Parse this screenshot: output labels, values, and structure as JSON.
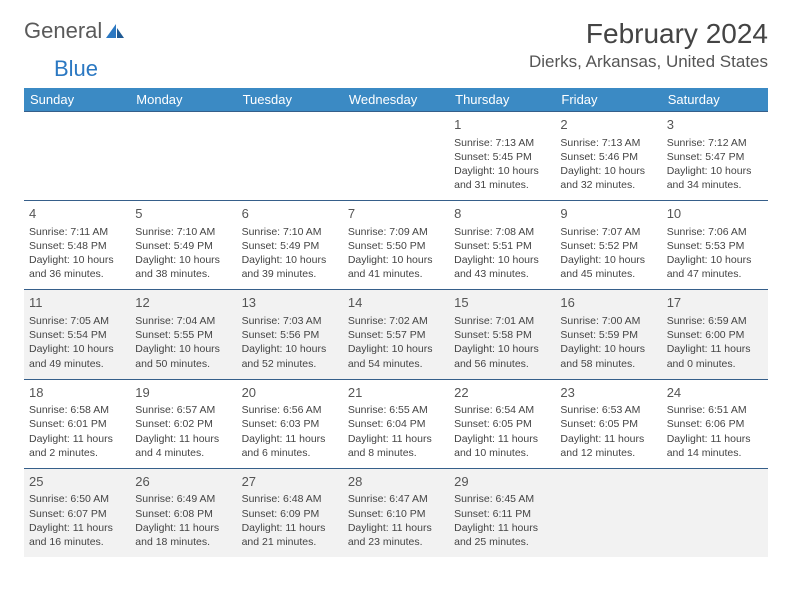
{
  "brand": {
    "part1": "General",
    "part2": "Blue"
  },
  "title": "February 2024",
  "location": "Dierks, Arkansas, United States",
  "weekdays": [
    "Sunday",
    "Monday",
    "Tuesday",
    "Wednesday",
    "Thursday",
    "Friday",
    "Saturday"
  ],
  "styling": {
    "header_bg": "#3b8ac4",
    "header_fg": "#ffffff",
    "row_alt_bg": "#f2f2f2",
    "border_color": "#365f8a",
    "body_fontsize": 10.5,
    "daynum_fontsize": 13,
    "weekday_fontsize": 13,
    "title_fontsize": 28,
    "location_fontsize": 17
  },
  "weeks": [
    [
      null,
      null,
      null,
      null,
      {
        "n": "1",
        "sr": "Sunrise: 7:13 AM",
        "ss": "Sunset: 5:45 PM",
        "dl1": "Daylight: 10 hours",
        "dl2": "and 31 minutes."
      },
      {
        "n": "2",
        "sr": "Sunrise: 7:13 AM",
        "ss": "Sunset: 5:46 PM",
        "dl1": "Daylight: 10 hours",
        "dl2": "and 32 minutes."
      },
      {
        "n": "3",
        "sr": "Sunrise: 7:12 AM",
        "ss": "Sunset: 5:47 PM",
        "dl1": "Daylight: 10 hours",
        "dl2": "and 34 minutes."
      }
    ],
    [
      {
        "n": "4",
        "sr": "Sunrise: 7:11 AM",
        "ss": "Sunset: 5:48 PM",
        "dl1": "Daylight: 10 hours",
        "dl2": "and 36 minutes."
      },
      {
        "n": "5",
        "sr": "Sunrise: 7:10 AM",
        "ss": "Sunset: 5:49 PM",
        "dl1": "Daylight: 10 hours",
        "dl2": "and 38 minutes."
      },
      {
        "n": "6",
        "sr": "Sunrise: 7:10 AM",
        "ss": "Sunset: 5:49 PM",
        "dl1": "Daylight: 10 hours",
        "dl2": "and 39 minutes."
      },
      {
        "n": "7",
        "sr": "Sunrise: 7:09 AM",
        "ss": "Sunset: 5:50 PM",
        "dl1": "Daylight: 10 hours",
        "dl2": "and 41 minutes."
      },
      {
        "n": "8",
        "sr": "Sunrise: 7:08 AM",
        "ss": "Sunset: 5:51 PM",
        "dl1": "Daylight: 10 hours",
        "dl2": "and 43 minutes."
      },
      {
        "n": "9",
        "sr": "Sunrise: 7:07 AM",
        "ss": "Sunset: 5:52 PM",
        "dl1": "Daylight: 10 hours",
        "dl2": "and 45 minutes."
      },
      {
        "n": "10",
        "sr": "Sunrise: 7:06 AM",
        "ss": "Sunset: 5:53 PM",
        "dl1": "Daylight: 10 hours",
        "dl2": "and 47 minutes."
      }
    ],
    [
      {
        "n": "11",
        "sr": "Sunrise: 7:05 AM",
        "ss": "Sunset: 5:54 PM",
        "dl1": "Daylight: 10 hours",
        "dl2": "and 49 minutes."
      },
      {
        "n": "12",
        "sr": "Sunrise: 7:04 AM",
        "ss": "Sunset: 5:55 PM",
        "dl1": "Daylight: 10 hours",
        "dl2": "and 50 minutes."
      },
      {
        "n": "13",
        "sr": "Sunrise: 7:03 AM",
        "ss": "Sunset: 5:56 PM",
        "dl1": "Daylight: 10 hours",
        "dl2": "and 52 minutes."
      },
      {
        "n": "14",
        "sr": "Sunrise: 7:02 AM",
        "ss": "Sunset: 5:57 PM",
        "dl1": "Daylight: 10 hours",
        "dl2": "and 54 minutes."
      },
      {
        "n": "15",
        "sr": "Sunrise: 7:01 AM",
        "ss": "Sunset: 5:58 PM",
        "dl1": "Daylight: 10 hours",
        "dl2": "and 56 minutes."
      },
      {
        "n": "16",
        "sr": "Sunrise: 7:00 AM",
        "ss": "Sunset: 5:59 PM",
        "dl1": "Daylight: 10 hours",
        "dl2": "and 58 minutes."
      },
      {
        "n": "17",
        "sr": "Sunrise: 6:59 AM",
        "ss": "Sunset: 6:00 PM",
        "dl1": "Daylight: 11 hours",
        "dl2": "and 0 minutes."
      }
    ],
    [
      {
        "n": "18",
        "sr": "Sunrise: 6:58 AM",
        "ss": "Sunset: 6:01 PM",
        "dl1": "Daylight: 11 hours",
        "dl2": "and 2 minutes."
      },
      {
        "n": "19",
        "sr": "Sunrise: 6:57 AM",
        "ss": "Sunset: 6:02 PM",
        "dl1": "Daylight: 11 hours",
        "dl2": "and 4 minutes."
      },
      {
        "n": "20",
        "sr": "Sunrise: 6:56 AM",
        "ss": "Sunset: 6:03 PM",
        "dl1": "Daylight: 11 hours",
        "dl2": "and 6 minutes."
      },
      {
        "n": "21",
        "sr": "Sunrise: 6:55 AM",
        "ss": "Sunset: 6:04 PM",
        "dl1": "Daylight: 11 hours",
        "dl2": "and 8 minutes."
      },
      {
        "n": "22",
        "sr": "Sunrise: 6:54 AM",
        "ss": "Sunset: 6:05 PM",
        "dl1": "Daylight: 11 hours",
        "dl2": "and 10 minutes."
      },
      {
        "n": "23",
        "sr": "Sunrise: 6:53 AM",
        "ss": "Sunset: 6:05 PM",
        "dl1": "Daylight: 11 hours",
        "dl2": "and 12 minutes."
      },
      {
        "n": "24",
        "sr": "Sunrise: 6:51 AM",
        "ss": "Sunset: 6:06 PM",
        "dl1": "Daylight: 11 hours",
        "dl2": "and 14 minutes."
      }
    ],
    [
      {
        "n": "25",
        "sr": "Sunrise: 6:50 AM",
        "ss": "Sunset: 6:07 PM",
        "dl1": "Daylight: 11 hours",
        "dl2": "and 16 minutes."
      },
      {
        "n": "26",
        "sr": "Sunrise: 6:49 AM",
        "ss": "Sunset: 6:08 PM",
        "dl1": "Daylight: 11 hours",
        "dl2": "and 18 minutes."
      },
      {
        "n": "27",
        "sr": "Sunrise: 6:48 AM",
        "ss": "Sunset: 6:09 PM",
        "dl1": "Daylight: 11 hours",
        "dl2": "and 21 minutes."
      },
      {
        "n": "28",
        "sr": "Sunrise: 6:47 AM",
        "ss": "Sunset: 6:10 PM",
        "dl1": "Daylight: 11 hours",
        "dl2": "and 23 minutes."
      },
      {
        "n": "29",
        "sr": "Sunrise: 6:45 AM",
        "ss": "Sunset: 6:11 PM",
        "dl1": "Daylight: 11 hours",
        "dl2": "and 25 minutes."
      },
      null,
      null
    ]
  ]
}
